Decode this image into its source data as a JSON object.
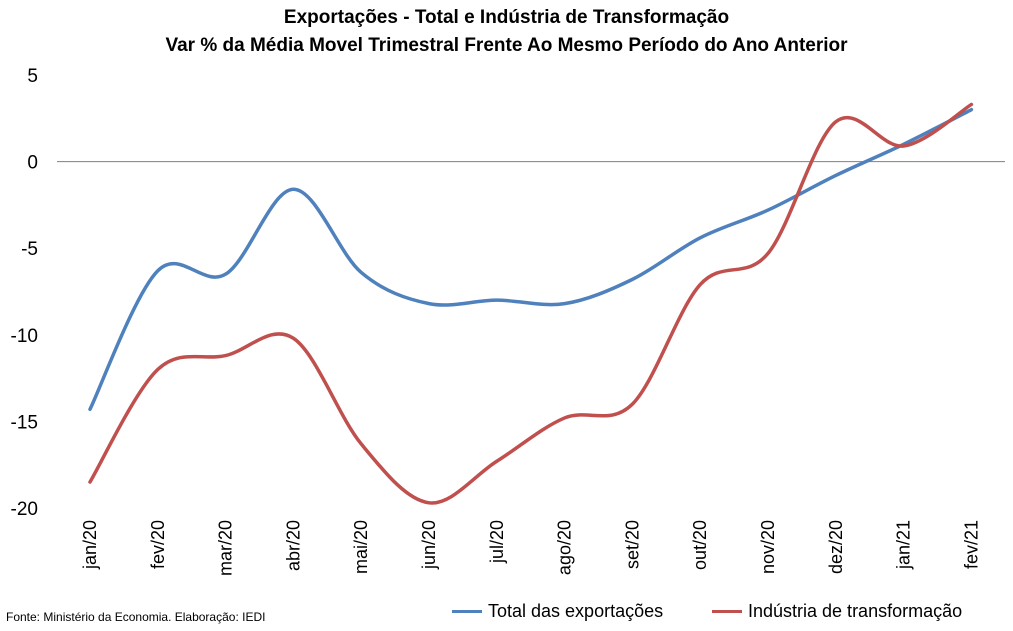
{
  "chart_data": {
    "type": "line",
    "title": "Exportações - Total e Indústria de Transformação",
    "subtitle": "Var % da Média Movel Trimestral Frente Ao Mesmo Período do Ano Anterior",
    "categories": [
      "jan/20",
      "fev/20",
      "mar/20",
      "abr/20",
      "mai/20",
      "jun/20",
      "jul/20",
      "ago/20",
      "set/20",
      "out/20",
      "nov/20",
      "dez/20",
      "jan/21",
      "fev/21"
    ],
    "yticks": [
      5,
      0,
      -5,
      -10,
      -15,
      -20
    ],
    "ylim": [
      -20,
      5
    ],
    "series": [
      {
        "name": "Total das exportações",
        "color": "#4f81bd",
        "values": [
          -14.3,
          -6.3,
          -6.5,
          -1.6,
          -6.4,
          -8.2,
          -8.0,
          -8.2,
          -6.8,
          -4.4,
          -2.8,
          -0.8,
          1.0,
          3.0
        ]
      },
      {
        "name": "Indústria de transformação",
        "color": "#c0504d",
        "values": [
          -18.5,
          -12.0,
          -11.2,
          -10.2,
          -16.3,
          -19.7,
          -17.3,
          -14.8,
          -14.0,
          -7.1,
          -5.3,
          2.3,
          0.9,
          3.3
        ]
      }
    ],
    "grid": false,
    "legend_position": "bottom"
  },
  "source_note": "Fonte: Ministério da Economia. Elaboração: IEDI"
}
